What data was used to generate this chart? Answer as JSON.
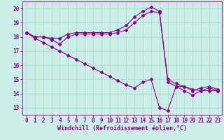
{
  "xlabel": "Windchill (Refroidissement éolien,°C)",
  "background_color": "#cceee8",
  "grid_color": "#aaddcc",
  "line_color": "#880088",
  "xlim": [
    -0.5,
    23.5
  ],
  "ylim": [
    12.5,
    20.5
  ],
  "xticks": [
    0,
    1,
    2,
    3,
    4,
    5,
    6,
    7,
    8,
    9,
    10,
    11,
    12,
    13,
    14,
    15,
    16,
    17,
    18,
    19,
    20,
    21,
    22,
    23
  ],
  "yticks": [
    13,
    14,
    15,
    16,
    17,
    18,
    19,
    20
  ],
  "curve1_x": [
    0,
    1,
    2,
    3,
    4,
    5,
    6,
    7,
    8,
    9,
    10,
    11,
    12,
    13,
    14,
    15,
    16,
    17,
    18,
    19,
    20,
    21,
    22,
    23
  ],
  "curve1_y": [
    18.3,
    18.0,
    18.0,
    17.9,
    17.9,
    18.2,
    18.3,
    18.3,
    18.3,
    18.3,
    18.3,
    18.5,
    18.8,
    19.4,
    19.8,
    20.1,
    19.8,
    14.8,
    14.5,
    14.2,
    13.9,
    14.2,
    14.4,
    14.2
  ],
  "curve2_x": [
    0,
    1,
    2,
    3,
    4,
    5,
    6,
    7,
    8,
    9,
    10,
    11,
    12,
    13,
    14,
    15,
    16,
    17,
    18,
    19,
    20,
    21,
    22,
    23
  ],
  "curve2_y": [
    18.3,
    18.0,
    18.0,
    17.8,
    17.5,
    18.0,
    18.2,
    18.2,
    18.2,
    18.2,
    18.2,
    18.3,
    18.5,
    19.0,
    19.5,
    19.8,
    19.7,
    15.0,
    14.7,
    14.5,
    14.2,
    14.4,
    14.5,
    14.3
  ],
  "curve3_x": [
    0,
    1,
    2,
    3,
    4,
    5,
    6,
    7,
    8,
    9,
    10,
    11,
    12,
    13,
    14,
    15,
    16,
    17,
    18,
    19,
    20,
    21,
    22,
    23
  ],
  "curve3_y": [
    18.3,
    17.9,
    17.6,
    17.3,
    17.0,
    16.7,
    16.4,
    16.1,
    15.8,
    15.5,
    15.2,
    14.9,
    14.6,
    14.4,
    14.8,
    15.0,
    13.0,
    12.8,
    14.5,
    14.5,
    14.3,
    14.2,
    14.2,
    14.2
  ],
  "marker": "D",
  "markersize": 2.0,
  "linewidth": 0.8,
  "tick_fontsize": 5.5,
  "label_fontsize": 6.0
}
